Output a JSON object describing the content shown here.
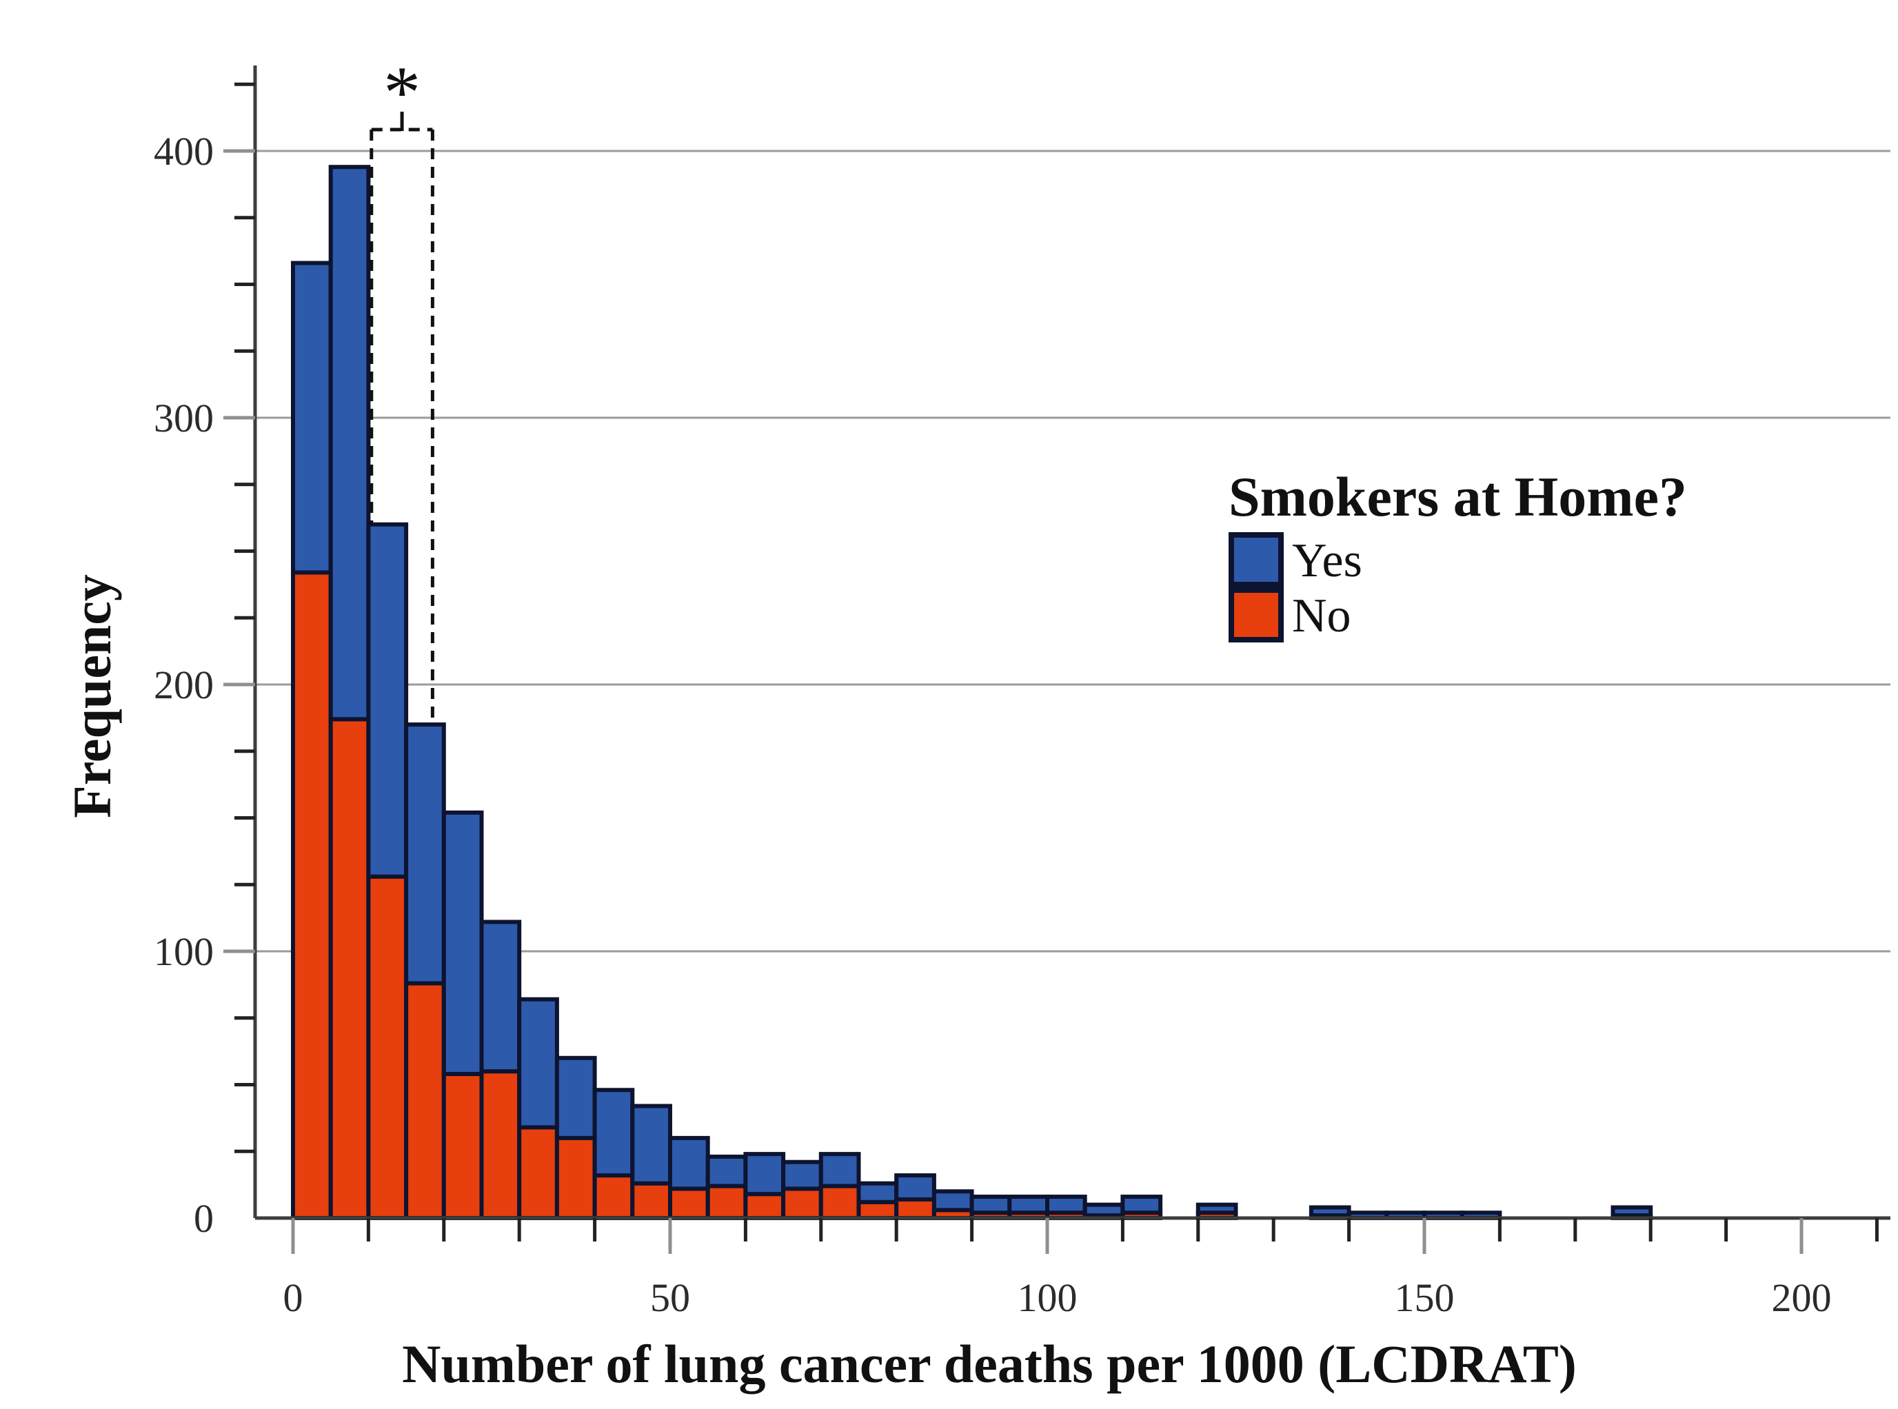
{
  "figure": {
    "background": "#ffffff"
  },
  "y_axis": {
    "title": "Frequency",
    "tick_labels": [
      "0",
      "100",
      "200",
      "300",
      "400"
    ],
    "major_ticks": [
      0,
      100,
      200,
      300,
      400
    ],
    "minor_tick_step": 25,
    "minor_tick_max": 425,
    "range": [
      0,
      432
    ],
    "gridlines": true
  },
  "x_axis": {
    "title": "Number of lung cancer deaths per 1000 (LCDRAT)",
    "tick_labels": [
      "0",
      "50",
      "100",
      "150",
      "200"
    ],
    "major_ticks": [
      0,
      50,
      100,
      150,
      200
    ],
    "minor_tick_step": 10,
    "minor_tick_max": 210,
    "range": [
      0,
      212
    ]
  },
  "legend": {
    "title": "Smokers at Home?",
    "items": [
      {
        "label": "Yes",
        "color": "#2e5aab"
      },
      {
        "label": "No",
        "color": "#e73f0d"
      }
    ]
  },
  "annotation": {
    "symbol": "*",
    "x_start": 10.4,
    "x_end": 18.5,
    "top_value": 408,
    "left_bottom_value": 260,
    "right_bottom_value": 185
  },
  "colors": {
    "yes_fill": "#2e5aab",
    "no_fill": "#e73f0d",
    "bar_border": "#0d1430",
    "gridline": "#9b9b9b",
    "axis": "#3d3d3d",
    "major_tick": "#8f8f8f",
    "minor_tick": "#222222",
    "annotation_line": "#111111"
  },
  "chart_data": {
    "type": "bar",
    "subtype": "stacked-histogram",
    "title": "",
    "xlabel": "Number of lung cancer deaths per 1000 (LCDRAT)",
    "ylabel": "Frequency",
    "xlim": [
      0,
      212
    ],
    "ylim": [
      0,
      432
    ],
    "grid": "horizontal-major",
    "legend_position": "center-right",
    "bin_width": 5,
    "bin_starts": [
      0,
      5,
      10,
      15,
      20,
      25,
      30,
      35,
      40,
      45,
      50,
      55,
      60,
      65,
      70,
      75,
      80,
      85,
      90,
      95,
      100,
      105,
      110,
      115,
      120,
      125,
      130,
      135,
      140,
      145,
      150,
      155,
      160,
      165,
      170,
      175
    ],
    "stack_order_bottom_to_top": [
      "No",
      "Yes"
    ],
    "series": [
      {
        "name": "No",
        "values": [
          242,
          187,
          128,
          88,
          54,
          55,
          34,
          30,
          16,
          13,
          11,
          12,
          9,
          11,
          12,
          6,
          7,
          3,
          2,
          2,
          2,
          1,
          2,
          0,
          2,
          0,
          0,
          1,
          0,
          0,
          0,
          0,
          0,
          0,
          0,
          1
        ]
      },
      {
        "name": "Yes",
        "values": [
          116,
          207,
          132,
          97,
          98,
          56,
          48,
          30,
          32,
          29,
          19,
          11,
          15,
          10,
          12,
          7,
          9,
          7,
          6,
          6,
          6,
          4,
          6,
          0,
          3,
          0,
          0,
          3,
          2,
          2,
          2,
          2,
          0,
          0,
          0,
          3
        ]
      }
    ],
    "totals": [
      358,
      394,
      260,
      185,
      152,
      111,
      82,
      60,
      48,
      42,
      30,
      23,
      24,
      21,
      24,
      13,
      16,
      10,
      8,
      8,
      8,
      5,
      8,
      0,
      5,
      0,
      0,
      4,
      2,
      2,
      2,
      2,
      0,
      0,
      0,
      4
    ]
  }
}
